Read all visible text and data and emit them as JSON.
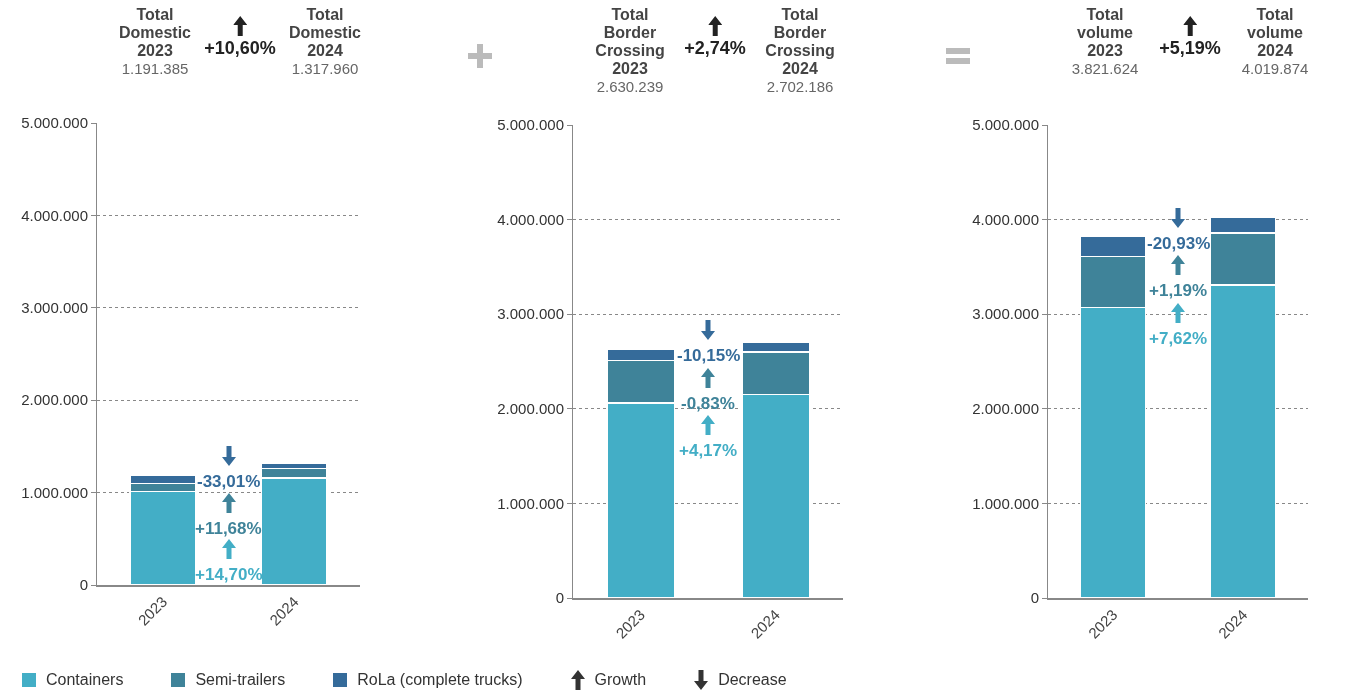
{
  "chart_data": [
    {
      "type": "bar",
      "stacked": true,
      "categories": [
        "2023",
        "2024"
      ],
      "series": [
        {
          "name": "Containers",
          "color": "#43aec6",
          "values": [
            1010000,
            1160000
          ]
        },
        {
          "name": "Semi-trailers",
          "color": "#3f8399",
          "values": [
            90000,
            100000
          ]
        },
        {
          "name": "RoLa (complete trucks)",
          "color": "#356b9a",
          "values": [
            90000,
            60000
          ]
        }
      ],
      "ylim": [
        0,
        5000000
      ],
      "yticks": [
        {
          "value": 0,
          "label": "0"
        },
        {
          "value": 1000000,
          "label": "1.000.000"
        },
        {
          "value": 2000000,
          "label": "2.000.000"
        },
        {
          "value": 3000000,
          "label": "3.000.000"
        },
        {
          "value": 4000000,
          "label": "4.000.000"
        },
        {
          "value": 5000000,
          "label": "5.000.000"
        }
      ],
      "grid": "y",
      "legend": "bottom",
      "annotations": [
        "Total Domestic 2023",
        "1.191.385",
        "Total Domestic 2024",
        "1.317.960",
        "+10,60%",
        "-33,01%",
        "+11,68%",
        "+14,70%"
      ]
    },
    {
      "type": "bar",
      "stacked": true,
      "categories": [
        "2023",
        "2024"
      ],
      "series": [
        {
          "color": "#43aec6",
          "values": [
            2060000,
            2150000
          ]
        },
        {
          "color": "#3f8399",
          "values": [
            450000,
            450000
          ]
        },
        {
          "color": "#356b9a",
          "values": [
            120000,
            100000
          ]
        }
      ],
      "ylim": [
        0,
        5000000
      ],
      "yticks": [
        {
          "value": 0,
          "label": "0"
        },
        {
          "value": 1000000,
          "label": "1.000.000"
        },
        {
          "value": 2000000,
          "label": "2.000.000"
        },
        {
          "value": 3000000,
          "label": "3.000.000"
        },
        {
          "value": 4000000,
          "label": "4.000.000"
        },
        {
          "value": 5000000,
          "label": "5.000.000"
        }
      ],
      "grid": "y",
      "annotations": [
        "Total Border Crossing 2023",
        "2.630.239",
        "Total Border Crossing 2024",
        "2.702.186",
        "+2,74%",
        "-10,15%",
        "-0,83%",
        "+4,17%"
      ]
    },
    {
      "type": "bar",
      "stacked": true,
      "categories": [
        "2023",
        "2024"
      ],
      "series": [
        {
          "color": "#43aec6",
          "values": [
            3070000,
            3310000
          ]
        },
        {
          "color": "#3f8399",
          "values": [
            540000,
            550000
          ]
        },
        {
          "color": "#356b9a",
          "values": [
            210000,
            170000
          ]
        }
      ],
      "ylim": [
        0,
        5000000
      ],
      "yticks": [
        {
          "value": 0,
          "label": "0"
        },
        {
          "value": 1000000,
          "label": "1.000.000"
        },
        {
          "value": 2000000,
          "label": "2.000.000"
        },
        {
          "value": 3000000,
          "label": "3.000.000"
        },
        {
          "value": 4000000,
          "label": "4.000.000"
        },
        {
          "value": 5000000,
          "label": "5.000.000"
        }
      ],
      "grid": "y",
      "annotations": [
        "Total volume 2023",
        "3.821.624",
        "Total volume 2024",
        "4.019.874",
        "+5,19%",
        "-20,93%",
        "+1,19%",
        "+7,62%"
      ]
    },
    {
      "type": "other",
      "annotations": [
        "Growth",
        "Decrease"
      ]
    }
  ]
}
